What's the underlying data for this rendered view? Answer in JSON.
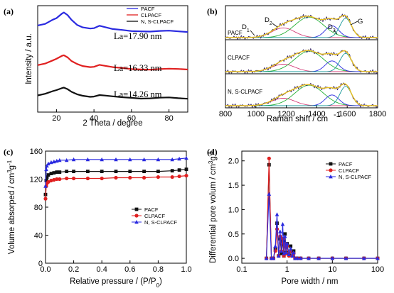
{
  "chart_data": [
    {
      "panel": "(a)",
      "type": "line",
      "xlabel": "2 Theta / degree",
      "ylabel": "Intensity / a.u.",
      "xlim": [
        10,
        90
      ],
      "xticks": [
        20,
        40,
        60,
        80
      ],
      "legend": "top-right",
      "series": [
        {
          "name": "PACF",
          "color": "#2a2ae0",
          "x": [
            10,
            14,
            18,
            20,
            23,
            24,
            26,
            28,
            31,
            34,
            38,
            40,
            43,
            46,
            50,
            55,
            60,
            65,
            70,
            75,
            80,
            85,
            90
          ],
          "y": [
            0.93,
            0.94,
            0.98,
            1.0,
            1.05,
            1.06,
            1.03,
            0.98,
            0.93,
            0.91,
            0.905,
            0.91,
            0.93,
            0.91,
            0.89,
            0.885,
            0.88,
            0.88,
            0.875,
            0.875,
            0.875,
            0.87,
            0.87
          ]
        },
        {
          "name": "CLPACF",
          "color": "#e02020",
          "x": [
            10,
            14,
            18,
            20,
            23,
            24,
            26,
            28,
            31,
            34,
            38,
            40,
            43,
            46,
            50,
            55,
            60,
            65,
            70,
            75,
            80,
            85,
            90
          ],
          "y": [
            0.55,
            0.56,
            0.59,
            0.61,
            0.645,
            0.65,
            0.625,
            0.585,
            0.555,
            0.54,
            0.535,
            0.54,
            0.555,
            0.54,
            0.525,
            0.52,
            0.515,
            0.515,
            0.51,
            0.51,
            0.51,
            0.51,
            0.51
          ]
        },
        {
          "name": "N, S-CLPACF",
          "color": "#111111",
          "x": [
            10,
            14,
            18,
            20,
            23,
            24,
            26,
            28,
            31,
            34,
            38,
            40,
            43,
            46,
            50,
            55,
            60,
            65,
            70,
            75,
            80,
            85,
            90
          ],
          "y": [
            0.26,
            0.27,
            0.295,
            0.31,
            0.335,
            0.34,
            0.32,
            0.29,
            0.265,
            0.255,
            0.25,
            0.255,
            0.265,
            0.255,
            0.245,
            0.24,
            0.24,
            0.235,
            0.235,
            0.235,
            0.235,
            0.23,
            0.23
          ]
        }
      ],
      "annotations": [
        "La=17.90 nm",
        "La=16.33 nm",
        "La=14.26 nm"
      ]
    },
    {
      "panel": "(b)",
      "type": "line",
      "xlabel": "Raman shift / cm",
      "xlabel_sup": "-1",
      "ylabel": "Intensity / a.u.",
      "xlim": [
        800,
        1800
      ],
      "xticks": [
        800,
        1000,
        1200,
        1400,
        1600,
        1800
      ],
      "samples": [
        "PACF",
        "CLPACF",
        "N, S-CLPACF"
      ],
      "peaks": [
        {
          "name": "D1",
          "position": 1180,
          "color": "#d4407a"
        },
        {
          "name": "D2",
          "position": 1350,
          "color": "#2ab23a"
        },
        {
          "name": "D3",
          "position": 1500,
          "color": "#2a2ae0"
        },
        {
          "name": "G",
          "position": 1590,
          "color": "#1a9a9a"
        }
      ],
      "peak_labels": [
        "D",
        "1",
        "D",
        "2",
        "D",
        "3",
        "G"
      ],
      "fit_color": "#e8c020",
      "data_color": "#3a2a6a"
    },
    {
      "panel": "(c)",
      "type": "line",
      "xlabel": "Relative pressure / (P/P",
      "xlabel_sub": "0",
      "xlabel_end": ")",
      "ylabel": "Volume absorped / cm",
      "ylabel_sup1": "3",
      "ylabel_mid": "g",
      "ylabel_sup2": "-1",
      "xlim": [
        0,
        1.0
      ],
      "ylim": [
        0,
        160
      ],
      "xticks": [
        0.0,
        0.2,
        0.4,
        0.6,
        0.8,
        1.0
      ],
      "yticks": [
        0,
        40,
        80,
        120,
        160
      ],
      "legend": "center-right",
      "series": [
        {
          "name": "PACF",
          "color": "#111111",
          "marker": "square",
          "x": [
            0.0,
            0.005,
            0.01,
            0.02,
            0.04,
            0.06,
            0.08,
            0.1,
            0.15,
            0.2,
            0.3,
            0.4,
            0.5,
            0.6,
            0.7,
            0.8,
            0.9,
            0.95,
            1.0
          ],
          "y": [
            98,
            118,
            123,
            126,
            128,
            129,
            130,
            130,
            131,
            131,
            131,
            131,
            131,
            131,
            131,
            131,
            132,
            133,
            134
          ]
        },
        {
          "name": "CLPACF",
          "color": "#e02020",
          "marker": "circle",
          "x": [
            0.0,
            0.005,
            0.01,
            0.02,
            0.04,
            0.06,
            0.08,
            0.1,
            0.15,
            0.2,
            0.3,
            0.4,
            0.5,
            0.6,
            0.7,
            0.8,
            0.9,
            0.95,
            1.0
          ],
          "y": [
            92,
            110,
            114,
            116,
            118,
            119,
            120,
            120,
            121,
            121,
            121,
            121,
            122,
            122,
            122,
            123,
            123,
            124,
            125
          ]
        },
        {
          "name": "N, S-CLPACF",
          "color": "#2a2ae0",
          "marker": "triangle",
          "x": [
            0.0,
            0.005,
            0.01,
            0.02,
            0.04,
            0.06,
            0.08,
            0.1,
            0.15,
            0.2,
            0.3,
            0.4,
            0.5,
            0.6,
            0.7,
            0.8,
            0.9,
            0.95,
            1.0
          ],
          "y": [
            110,
            134,
            139,
            142,
            144,
            145,
            146,
            147,
            147,
            148,
            148,
            148,
            148,
            148,
            148,
            148,
            148,
            149,
            150
          ]
        }
      ]
    },
    {
      "panel": "(d)",
      "type": "line",
      "xlabel": "Pore width / nm",
      "ylabel": "Differential pore volum / cm",
      "ylabel_sup1": "3",
      "ylabel_mid": "g",
      "ylabel_sup2": "-1",
      "xscale": "log",
      "xlim": [
        0.1,
        100
      ],
      "ylim": [
        -0.1,
        2.2
      ],
      "xticks": [
        0.1,
        1,
        10,
        100
      ],
      "yticks": [
        0.0,
        0.5,
        1.0,
        1.5,
        2.0
      ],
      "legend": "top-right",
      "series": [
        {
          "name": "PACF",
          "color": "#111111",
          "marker": "square",
          "x": [
            0.35,
            0.4,
            0.45,
            0.5,
            0.55,
            0.6,
            0.65,
            0.7,
            0.75,
            0.8,
            0.85,
            0.9,
            0.95,
            1.0,
            1.1,
            1.2,
            1.3,
            1.4,
            1.5,
            1.7,
            2,
            3,
            5,
            10,
            20,
            50,
            100
          ],
          "y": [
            0,
            1.92,
            0,
            0,
            0.2,
            0.72,
            0.05,
            0.4,
            0.1,
            0.35,
            0.05,
            0.5,
            0.12,
            0.3,
            0.08,
            0.25,
            0.05,
            0.15,
            0,
            0,
            0,
            0,
            0,
            0,
            0,
            0,
            0
          ]
        },
        {
          "name": "CLPACF",
          "color": "#e02020",
          "marker": "circle",
          "x": [
            0.35,
            0.4,
            0.45,
            0.5,
            0.55,
            0.6,
            0.65,
            0.7,
            0.75,
            0.8,
            0.85,
            0.9,
            0.95,
            1.0,
            1.1,
            1.2,
            1.3,
            1.4,
            1.5,
            1.7,
            2,
            3,
            5,
            10,
            20,
            50,
            100
          ],
          "y": [
            0,
            2.05,
            0,
            0,
            0.15,
            0.6,
            0.05,
            0.45,
            0.15,
            0.4,
            0.05,
            0.3,
            0.1,
            0.25,
            0.05,
            0.15,
            0.05,
            0.1,
            0,
            0,
            0,
            0,
            0,
            0,
            0,
            0,
            0
          ]
        },
        {
          "name": "N, S-CLPACF",
          "color": "#2a2ae0",
          "marker": "triangle",
          "x": [
            0.35,
            0.4,
            0.45,
            0.5,
            0.55,
            0.6,
            0.65,
            0.7,
            0.75,
            0.8,
            0.85,
            0.9,
            0.95,
            1.0,
            1.1,
            1.2,
            1.3,
            1.4,
            1.5,
            1.7,
            2,
            3,
            5,
            10,
            20,
            50,
            100
          ],
          "y": [
            0,
            1.32,
            0,
            0,
            0.25,
            0.9,
            0.05,
            0.55,
            0.15,
            0.7,
            0.1,
            0.45,
            0.12,
            0.3,
            0.08,
            0.2,
            0.05,
            0.12,
            0,
            0,
            0,
            0,
            0,
            0,
            0,
            0,
            0
          ]
        }
      ]
    }
  ]
}
